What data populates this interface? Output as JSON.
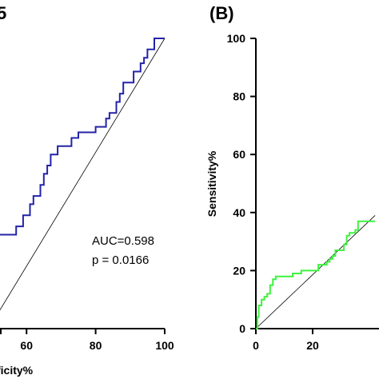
{
  "chart_data": [
    {
      "type": "line",
      "panel_label": "5",
      "xlabel": "ficity%",
      "ylabel": "",
      "xlim": [
        50,
        100
      ],
      "ylim": [
        -15,
        115
      ],
      "xticks": [
        60,
        80,
        100
      ],
      "annotations": [
        "AUC=0.598",
        "p = 0.0166"
      ],
      "colors": {
        "roc": "#2323a8",
        "reference": "#000000"
      },
      "series": [
        {
          "x": [
            50,
            57,
            57,
            59,
            59,
            61,
            61,
            62,
            62,
            64,
            64,
            65,
            65,
            66,
            66,
            67,
            67,
            69,
            69,
            73,
            73,
            75,
            75,
            80,
            80,
            83,
            83,
            84,
            84,
            86,
            86,
            87,
            87,
            88,
            88,
            91,
            91,
            93,
            93,
            94,
            94,
            95,
            95,
            97,
            97,
            100
          ],
          "y": [
            29,
            29,
            32,
            32,
            36,
            36,
            40,
            40,
            43,
            43,
            47,
            47,
            51,
            51,
            54,
            54,
            58,
            58,
            61,
            61,
            64,
            64,
            66,
            66,
            68,
            68,
            71,
            71,
            73,
            73,
            77,
            77,
            80,
            80,
            84,
            84,
            88,
            88,
            91,
            91,
            93,
            93,
            96,
            96,
            100,
            100
          ]
        },
        {
          "x": [
            50,
            100
          ],
          "y": [
            -3,
            100
          ]
        }
      ]
    },
    {
      "type": "line",
      "panel_label": "(B)",
      "xlabel": "",
      "ylabel": "Sensitivity%",
      "xlim": [
        0,
        42
      ],
      "ylim": [
        0,
        100
      ],
      "xticks": [
        0,
        20
      ],
      "yticks": [
        0,
        20,
        40,
        60,
        80,
        100
      ],
      "colors": {
        "roc": "#3ef23e",
        "reference": "#000000"
      },
      "series": [
        {
          "x": [
            0,
            0.5,
            0.5,
            1,
            1,
            2,
            2,
            3,
            3,
            4,
            4,
            5,
            5,
            6,
            6,
            7,
            7,
            13,
            13,
            16,
            16,
            22,
            22,
            25,
            25,
            26,
            26,
            27,
            27,
            28,
            28,
            31,
            31,
            32,
            32,
            33,
            33,
            35,
            35,
            36,
            36,
            42
          ],
          "y": [
            0,
            0,
            4,
            4,
            8,
            8,
            10,
            10,
            11,
            11,
            12,
            12,
            15,
            15,
            17,
            17,
            18,
            18,
            19,
            19,
            20,
            20,
            22,
            22,
            23,
            23,
            24,
            24,
            25,
            25,
            27,
            27,
            29,
            29,
            32,
            32,
            33,
            33,
            34,
            34,
            37,
            37
          ]
        },
        {
          "x": [
            0,
            42
          ],
          "y": [
            0,
            39
          ]
        }
      ]
    }
  ]
}
